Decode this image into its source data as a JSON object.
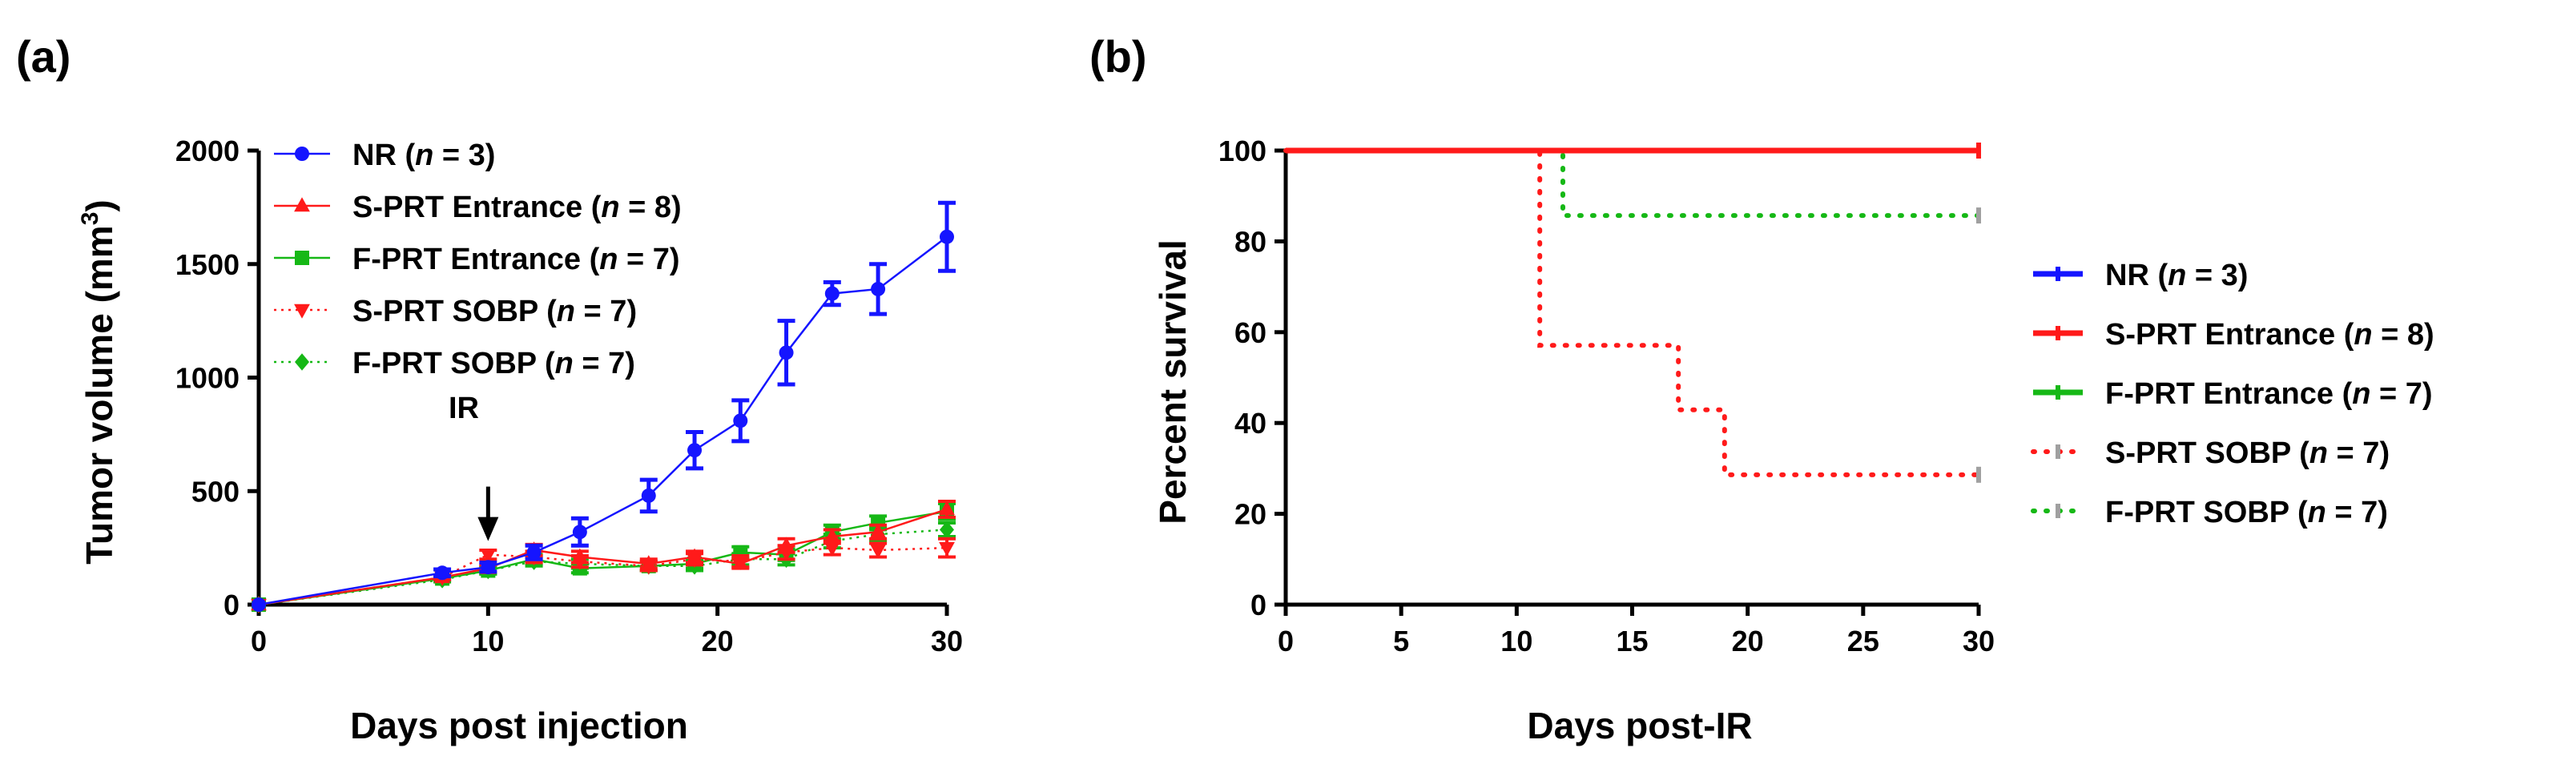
{
  "chart_data": [
    {
      "panel": "(a)",
      "type": "line",
      "xlabel": "Days post injection",
      "ylabel": "Tumor volume (mm",
      "ylabel_superscript": "3",
      "ylabel_close": ")",
      "xlim": [
        0,
        30
      ],
      "ylim": [
        0,
        2000
      ],
      "xticks": [
        0,
        10,
        20,
        30
      ],
      "yticks": [
        0,
        500,
        1000,
        1500,
        2000
      ],
      "grid": false,
      "legend_position": "top-left",
      "annotation": {
        "text": "IR",
        "x": 10,
        "y_from": 520,
        "y_to": 280
      },
      "series": [
        {
          "name": "NR",
          "n_label": "n",
          "n_value": " = 3",
          "color": "#1515ff",
          "marker": "circle",
          "dash": "solid",
          "x": [
            0,
            8,
            10,
            12,
            14,
            17,
            19,
            21,
            23,
            25,
            27,
            30
          ],
          "y": [
            0,
            140,
            165,
            230,
            320,
            480,
            680,
            810,
            1110,
            1370,
            1390,
            1620
          ],
          "err": [
            0,
            15,
            20,
            30,
            60,
            70,
            80,
            90,
            140,
            50,
            110,
            150
          ]
        },
        {
          "name": "S-PRT Entrance",
          "n_label": "n",
          "n_value": " = 8",
          "color": "#ff1a1a",
          "marker": "triangle-up",
          "dash": "solid",
          "x": [
            0,
            8,
            10,
            12,
            14,
            17,
            19,
            21,
            23,
            25,
            27,
            30
          ],
          "y": [
            0,
            120,
            160,
            240,
            210,
            180,
            210,
            180,
            260,
            300,
            320,
            420
          ],
          "err": [
            0,
            10,
            15,
            25,
            25,
            20,
            25,
            20,
            30,
            30,
            30,
            35
          ]
        },
        {
          "name": "F-PRT Entrance",
          "n_label": "n",
          "n_value": " = 7",
          "color": "#16b816",
          "marker": "square",
          "dash": "solid",
          "x": [
            0,
            8,
            10,
            12,
            14,
            17,
            19,
            21,
            23,
            25,
            27,
            30
          ],
          "y": [
            0,
            115,
            150,
            200,
            160,
            170,
            180,
            230,
            220,
            320,
            360,
            410
          ],
          "err": [
            0,
            10,
            15,
            20,
            20,
            20,
            20,
            25,
            25,
            30,
            30,
            35
          ]
        },
        {
          "name": "S-PRT SOBP",
          "n_label": "n",
          "n_value": " = 7",
          "color": "#ff1a1a",
          "marker": "triangle-down",
          "dash": "dotted",
          "x": [
            0,
            8,
            10,
            12,
            14,
            17,
            19,
            21,
            23,
            25,
            27,
            30
          ],
          "y": [
            0,
            120,
            220,
            210,
            190,
            170,
            200,
            190,
            230,
            250,
            240,
            250
          ],
          "err": [
            0,
            10,
            20,
            25,
            25,
            20,
            25,
            25,
            30,
            30,
            30,
            40
          ]
        },
        {
          "name": "F-PRT SOBP",
          "n_label": "n",
          "n_value": " = 7",
          "color": "#16b816",
          "marker": "diamond",
          "dash": "dotted",
          "x": [
            0,
            8,
            10,
            12,
            14,
            17,
            19,
            21,
            23,
            25,
            27,
            30
          ],
          "y": [
            0,
            110,
            150,
            190,
            180,
            170,
            170,
            200,
            200,
            280,
            310,
            330
          ],
          "err": [
            0,
            10,
            15,
            20,
            20,
            20,
            20,
            25,
            25,
            30,
            30,
            30
          ]
        }
      ]
    },
    {
      "panel": "(b)",
      "type": "line",
      "subtype": "kaplan-meier",
      "xlabel": "Days post-IR",
      "ylabel": "Percent survival",
      "xlim": [
        0,
        30
      ],
      "ylim": [
        0,
        100
      ],
      "xticks": [
        0,
        5,
        10,
        15,
        20,
        25,
        30
      ],
      "yticks": [
        0,
        20,
        40,
        60,
        80,
        100
      ],
      "grid": false,
      "legend_position": "right",
      "series": [
        {
          "name": "NR",
          "n_label": "n",
          "n_value": " = 3",
          "color": "#1515ff",
          "dash": "solid",
          "steps": [
            [
              0,
              100
            ],
            [
              30,
              100
            ]
          ]
        },
        {
          "name": "S-PRT Entrance",
          "n_label": "n",
          "n_value": " = 8",
          "color": "#ff1a1a",
          "dash": "solid",
          "steps": [
            [
              0,
              100
            ],
            [
              30,
              100
            ]
          ]
        },
        {
          "name": "F-PRT Entrance",
          "n_label": "n",
          "n_value": " = 7",
          "color": "#16b816",
          "dash": "solid",
          "steps": [
            [
              0,
              100
            ],
            [
              30,
              100
            ]
          ]
        },
        {
          "name": "S-PRT SOBP",
          "n_label": "n",
          "n_value": " = 7",
          "color": "#ff1a1a",
          "dash": "dotted",
          "steps": [
            [
              0,
              100
            ],
            [
              11,
              57.1
            ],
            [
              17,
              42.9
            ],
            [
              19,
              28.6
            ],
            [
              30,
              28.6
            ]
          ]
        },
        {
          "name": "F-PRT SOBP",
          "n_label": "n",
          "n_value": " = 7",
          "color": "#16b816",
          "dash": "dotted",
          "steps": [
            [
              0,
              100
            ],
            [
              12,
              85.7
            ],
            [
              30,
              85.7
            ]
          ]
        }
      ]
    }
  ]
}
